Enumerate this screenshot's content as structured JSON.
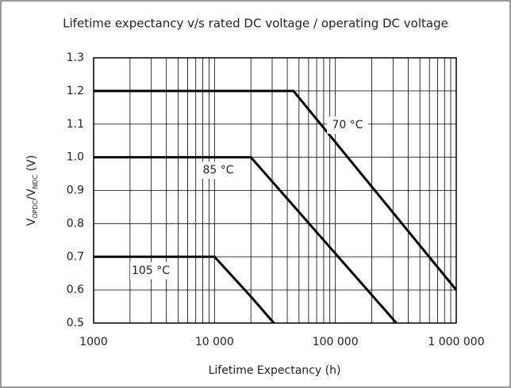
{
  "chart_data": {
    "type": "line",
    "title": "Lifetime expectancy v/s rated DC voltage / operating DC voltage",
    "xlabel": "Lifetime Expectancy (h)",
    "ylabel_parts": [
      "V",
      "OPDC",
      "/V",
      "NDC",
      " (V)"
    ],
    "xscale": "log",
    "xlim": [
      1000,
      1000000
    ],
    "xticks": [
      1000,
      {
        "value": 10000,
        "label": "10 000"
      },
      {
        "value": 100000,
        "label": "100 000"
      },
      {
        "value": 1000000,
        "label": "1 000 000"
      }
    ],
    "ylim": [
      0.5,
      1.3
    ],
    "yticks": [
      0.5,
      0.6,
      0.7,
      0.8,
      0.9,
      1.0,
      1.1,
      1.2,
      1.3
    ],
    "grid": true,
    "series": [
      {
        "name": "70 °C",
        "color": "#000000",
        "x": [
          1000,
          45000,
          1000000
        ],
        "values": [
          1.2,
          1.2,
          0.6
        ]
      },
      {
        "name": "85 °C",
        "color": "#000000",
        "x": [
          1000,
          20000,
          320000
        ],
        "values": [
          1.0,
          1.0,
          0.5
        ]
      },
      {
        "name": "105 °C",
        "color": "#000000",
        "x": [
          1000,
          10000,
          20000,
          31000
        ],
        "values": [
          0.7,
          0.7,
          0.58,
          0.5
        ]
      }
    ]
  }
}
